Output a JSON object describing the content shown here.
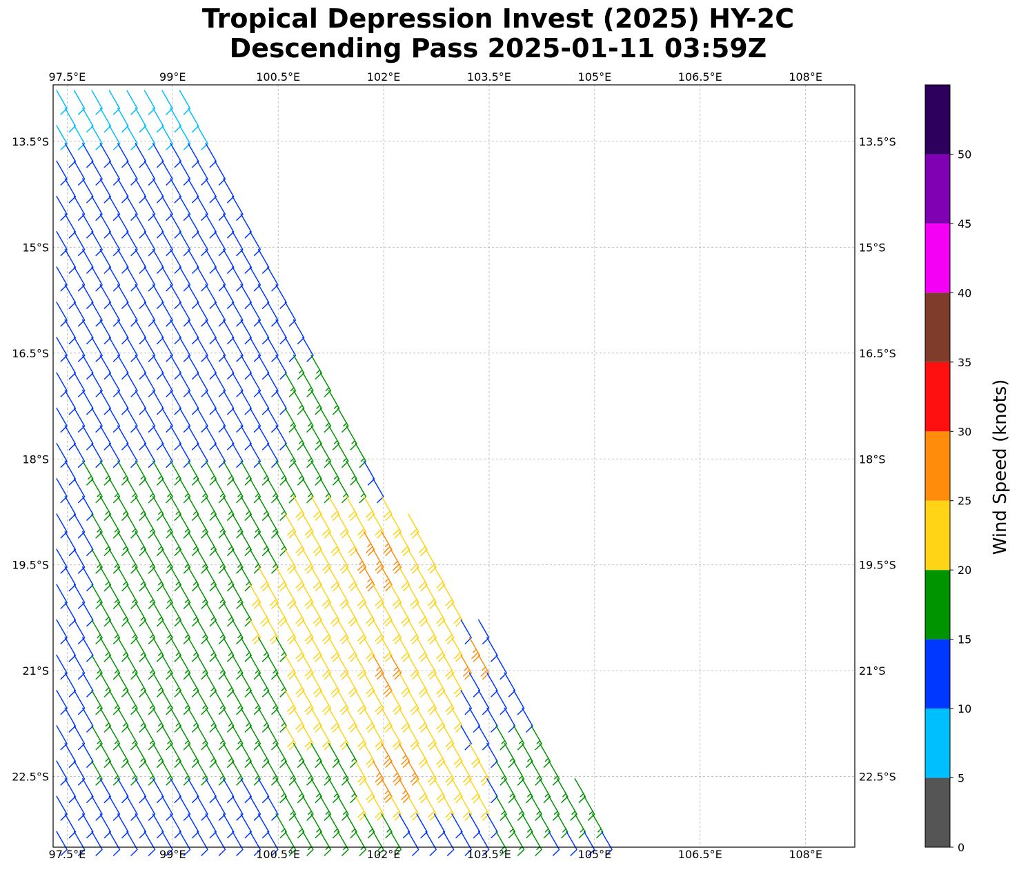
{
  "title": {
    "line1": "Tropical Depression Invest (2025) HY-2C",
    "line2": "Descending Pass 2025-01-11 03:59Z"
  },
  "chart_data": {
    "type": "wind-barb-map",
    "title": "Tropical Depression Invest (2025) HY-2C Descending Pass 2025-01-11 03:59Z",
    "xlim": [
      97.3,
      108.7
    ],
    "ylim": [
      -23.5,
      -12.7
    ],
    "x_ticks": [
      97.5,
      99,
      100.5,
      102,
      103.5,
      105,
      106.5,
      108
    ],
    "x_tick_labels": [
      "97.5°E",
      "99°E",
      "100.5°E",
      "102°E",
      "103.5°E",
      "105°E",
      "106.5°E",
      "108°E"
    ],
    "y_ticks": [
      -13.5,
      -15,
      -16.5,
      -18,
      -19.5,
      -21,
      -22.5
    ],
    "y_tick_labels": [
      "13.5°S",
      "15°S",
      "16.5°S",
      "18°S",
      "19.5°S",
      "21°S",
      "22.5°S"
    ],
    "grid": true,
    "colorbar": {
      "label": "Wind Speed (knots)",
      "ticks": [
        0,
        5,
        10,
        15,
        20,
        25,
        30,
        35,
        40,
        45,
        50
      ],
      "tick_labels": [
        "0",
        "5",
        "10",
        "15",
        "20",
        "25",
        "30",
        "35",
        "40",
        "45",
        "50"
      ],
      "bins": [
        {
          "min": 0,
          "max": 5,
          "color": "#555555"
        },
        {
          "min": 5,
          "max": 10,
          "color": "#00bfff"
        },
        {
          "min": 10,
          "max": 15,
          "color": "#0038ff"
        },
        {
          "min": 15,
          "max": 20,
          "color": "#009400"
        },
        {
          "min": 20,
          "max": 25,
          "color": "#ffd316"
        },
        {
          "min": 25,
          "max": 30,
          "color": "#ff8c0a"
        },
        {
          "min": 30,
          "max": 35,
          "color": "#ff1010"
        },
        {
          "min": 35,
          "max": 40,
          "color": "#7f3c2a"
        },
        {
          "min": 40,
          "max": 45,
          "color": "#f400f4"
        },
        {
          "min": 45,
          "max": 50,
          "color": "#8000b4"
        },
        {
          "min": 50,
          "max": 55,
          "color": "#2d005e"
        }
      ]
    },
    "swath": {
      "west_lon": 97.35,
      "east_edge": [
        [
          -12.75,
          99.3
        ],
        [
          -13.5,
          99.7
        ],
        [
          -15.0,
          100.4
        ],
        [
          -16.5,
          101.1
        ],
        [
          -17.8,
          101.7
        ],
        [
          -19.0,
          102.5
        ],
        [
          -20.5,
          103.5
        ],
        [
          -21.5,
          104.2
        ],
        [
          -22.5,
          104.7
        ],
        [
          -23.5,
          105.4
        ]
      ],
      "row_spacing_deg": 0.25,
      "col_spacing_deg": 0.25,
      "wind_from_deg": 150
    },
    "speed_zones_knots": [
      {
        "region": "far north edge (13.0-13.5S, 97.5-99.7E)",
        "speed": 8
      },
      {
        "region": "northern swath (13.5-17.8S)",
        "speed": 12
      },
      {
        "region": "central band (16.5-18.5S, 100.5-101.6E)",
        "speed": 17
      },
      {
        "region": "west-central (17.8-21.5S, 97.7-100.6E)",
        "speed": 17
      },
      {
        "region": "core (18.5-21.5S, 100.7-102.8E)",
        "speed": 22
      },
      {
        "region": "core maxima (18.8-19.6S near 101.8E; 20.8-21.2S near 102.0E; 22.0-22.6S near 102.1E; 20.6-20.9S near 103.2E)",
        "speed": 26
      },
      {
        "region": "eastern edge (22-23S, 103.7-104.4E)",
        "speed": 17
      },
      {
        "region": "southwest (22.4-23.5S, 97.4-100.5E)",
        "speed": 12
      }
    ]
  }
}
